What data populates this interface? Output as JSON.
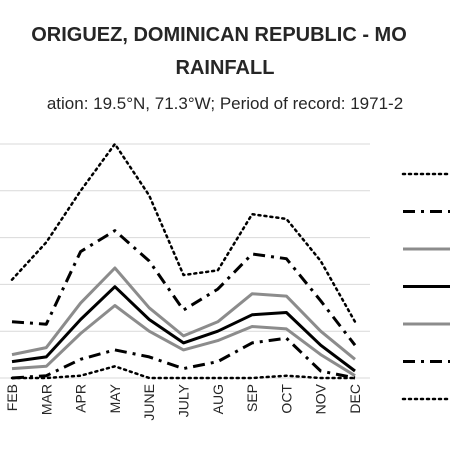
{
  "chart_data": {
    "type": "line",
    "title_line1": "ORIGUEZ, DOMINICAN REPUBLIC - MO",
    "title_line2": "RAINFALL",
    "subtitle": "ation: 19.5°N, 71.3°W; Period of record: 1971-2",
    "categories": [
      "FEB",
      "MAR",
      "APR",
      "MAY",
      "JUNE",
      "JULY",
      "AUG",
      "SEP",
      "OCT",
      "NOV",
      "DEC"
    ],
    "grid": true,
    "legend_position": "right",
    "xlabel": "",
    "ylabel": "",
    "ylim": [
      0,
      10
    ],
    "series": [
      {
        "style": "dotted",
        "color": "#000000",
        "values": [
          4.2,
          5.8,
          8.0,
          10.0,
          7.8,
          4.4,
          4.6,
          7.0,
          6.8,
          5.0,
          2.4
        ]
      },
      {
        "style": "dashdot",
        "color": "#000000",
        "values": [
          2.4,
          2.3,
          5.4,
          6.3,
          5.0,
          2.9,
          3.8,
          5.3,
          5.1,
          3.3,
          1.4
        ]
      },
      {
        "style": "solid",
        "color": "#8c8c8c",
        "values": [
          1.0,
          1.3,
          3.2,
          4.7,
          3.0,
          1.8,
          2.4,
          3.6,
          3.5,
          2.0,
          0.8
        ]
      },
      {
        "style": "solid",
        "color": "#000000",
        "values": [
          0.7,
          0.9,
          2.5,
          3.9,
          2.5,
          1.5,
          2.0,
          2.7,
          2.8,
          1.4,
          0.3
        ]
      },
      {
        "style": "solid",
        "color": "#8c8c8c",
        "values": [
          0.4,
          0.5,
          1.9,
          3.1,
          2.0,
          1.2,
          1.6,
          2.2,
          2.1,
          1.0,
          0.1
        ]
      },
      {
        "style": "dashdot",
        "color": "#000000",
        "values": [
          0.0,
          0.1,
          0.8,
          1.2,
          0.9,
          0.4,
          0.7,
          1.5,
          1.7,
          0.3,
          0.0
        ]
      },
      {
        "style": "dotted",
        "color": "#000000",
        "values": [
          0.0,
          0.0,
          0.1,
          0.5,
          0.0,
          0.0,
          0.0,
          0.0,
          0.1,
          0.0,
          0.0
        ]
      }
    ]
  }
}
